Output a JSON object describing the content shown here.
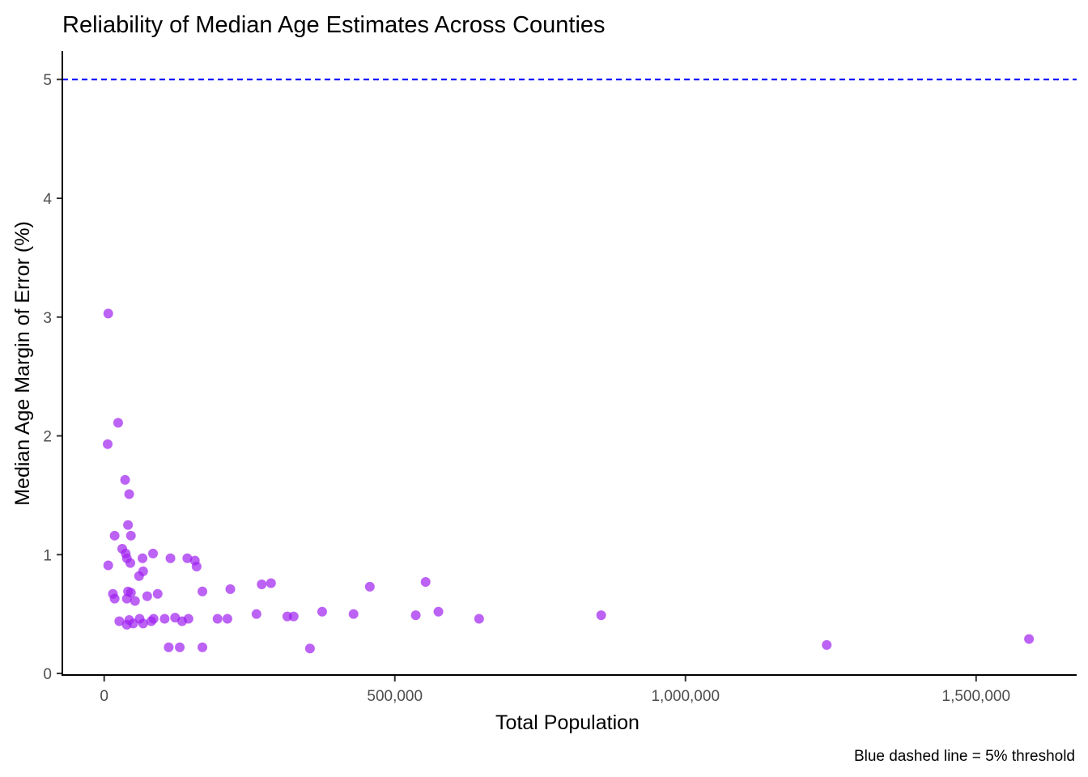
{
  "chart_data": {
    "type": "scatter",
    "title": "Reliability of Median Age Estimates Across Counties",
    "xlabel": "Total Population",
    "ylabel": "Median Age Margin of Error (%)",
    "caption": "Blue dashed line = 5% threshold",
    "xlim": [
      -72000,
      1673000
    ],
    "ylim": [
      -0.02,
      5.24
    ],
    "x_ticks": [
      0,
      500000,
      1000000,
      1500000
    ],
    "x_tick_labels": [
      "0",
      "500,000",
      "1,000,000",
      "1,500,000"
    ],
    "y_ticks": [
      0,
      1,
      2,
      3,
      4,
      5
    ],
    "y_tick_labels": [
      "0",
      "1",
      "2",
      "3",
      "4",
      "5"
    ],
    "grid": false,
    "point_color": "#a020f0",
    "point_opacity": 0.7,
    "reference_line": {
      "y": 5,
      "style": "dashed",
      "color": "#0000ff",
      "label": "5% threshold"
    },
    "points": [
      {
        "x": 7000,
        "y": 3.03
      },
      {
        "x": 24000,
        "y": 2.11
      },
      {
        "x": 6000,
        "y": 1.93
      },
      {
        "x": 36000,
        "y": 1.63
      },
      {
        "x": 43000,
        "y": 1.51
      },
      {
        "x": 41000,
        "y": 1.25
      },
      {
        "x": 18000,
        "y": 1.16
      },
      {
        "x": 46000,
        "y": 1.16
      },
      {
        "x": 31000,
        "y": 1.05
      },
      {
        "x": 37000,
        "y": 1.01
      },
      {
        "x": 39000,
        "y": 0.97
      },
      {
        "x": 45000,
        "y": 0.93
      },
      {
        "x": 7000,
        "y": 0.91
      },
      {
        "x": 66000,
        "y": 0.97
      },
      {
        "x": 84000,
        "y": 1.01
      },
      {
        "x": 114000,
        "y": 0.97
      },
      {
        "x": 143000,
        "y": 0.97
      },
      {
        "x": 156000,
        "y": 0.95
      },
      {
        "x": 159000,
        "y": 0.9
      },
      {
        "x": 67000,
        "y": 0.86
      },
      {
        "x": 60000,
        "y": 0.82
      },
      {
        "x": 15000,
        "y": 0.67
      },
      {
        "x": 18000,
        "y": 0.63
      },
      {
        "x": 41000,
        "y": 0.69
      },
      {
        "x": 46000,
        "y": 0.68
      },
      {
        "x": 39000,
        "y": 0.63
      },
      {
        "x": 53000,
        "y": 0.61
      },
      {
        "x": 74000,
        "y": 0.65
      },
      {
        "x": 92000,
        "y": 0.67
      },
      {
        "x": 169000,
        "y": 0.69
      },
      {
        "x": 26000,
        "y": 0.44
      },
      {
        "x": 43000,
        "y": 0.45
      },
      {
        "x": 39000,
        "y": 0.41
      },
      {
        "x": 50000,
        "y": 0.42
      },
      {
        "x": 61000,
        "y": 0.46
      },
      {
        "x": 67000,
        "y": 0.42
      },
      {
        "x": 81000,
        "y": 0.44
      },
      {
        "x": 85000,
        "y": 0.46
      },
      {
        "x": 104000,
        "y": 0.46
      },
      {
        "x": 122000,
        "y": 0.47
      },
      {
        "x": 134000,
        "y": 0.44
      },
      {
        "x": 145000,
        "y": 0.46
      },
      {
        "x": 111000,
        "y": 0.22
      },
      {
        "x": 130000,
        "y": 0.22
      },
      {
        "x": 169000,
        "y": 0.22
      },
      {
        "x": 217000,
        "y": 0.71
      },
      {
        "x": 271000,
        "y": 0.75
      },
      {
        "x": 287000,
        "y": 0.76
      },
      {
        "x": 457000,
        "y": 0.73
      },
      {
        "x": 553000,
        "y": 0.77
      },
      {
        "x": 195000,
        "y": 0.46
      },
      {
        "x": 212000,
        "y": 0.46
      },
      {
        "x": 262000,
        "y": 0.5
      },
      {
        "x": 315000,
        "y": 0.48
      },
      {
        "x": 326000,
        "y": 0.48
      },
      {
        "x": 375000,
        "y": 0.52
      },
      {
        "x": 429000,
        "y": 0.5
      },
      {
        "x": 536000,
        "y": 0.49
      },
      {
        "x": 575000,
        "y": 0.52
      },
      {
        "x": 354000,
        "y": 0.21
      },
      {
        "x": 645000,
        "y": 0.46
      },
      {
        "x": 855000,
        "y": 0.49
      },
      {
        "x": 1243000,
        "y": 0.24
      },
      {
        "x": 1591000,
        "y": 0.29
      }
    ]
  }
}
